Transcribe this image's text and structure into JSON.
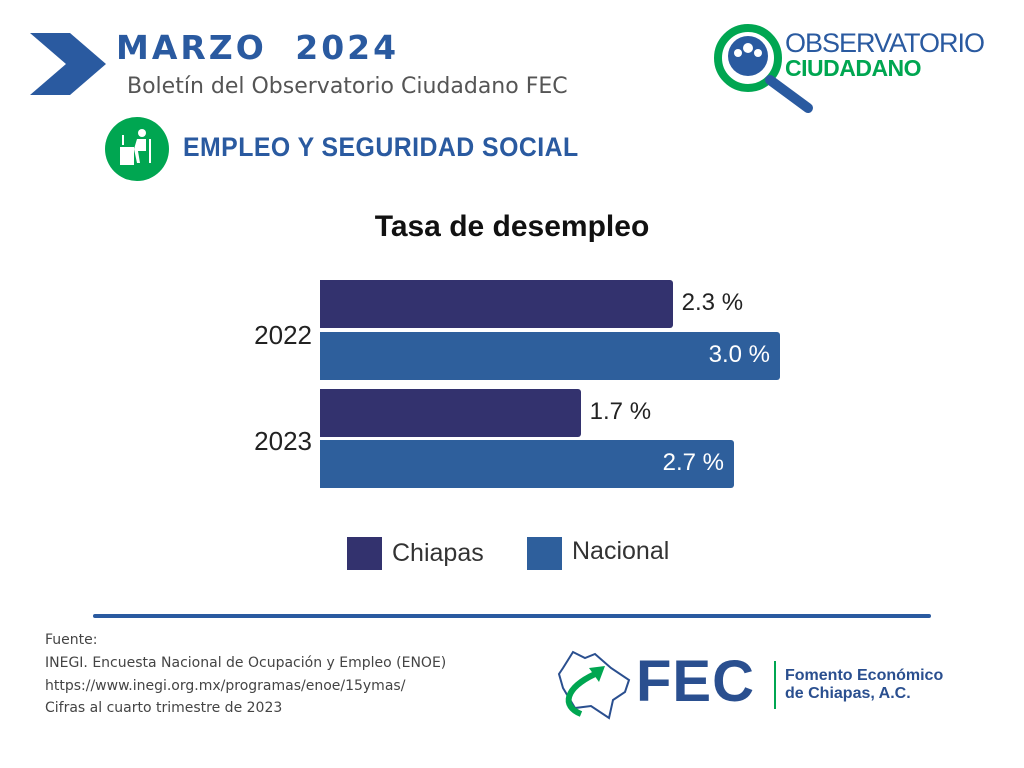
{
  "header": {
    "title": "MARZO 2024",
    "subtitle": "Boletín del Observatorio Ciudadano FEC",
    "section": "EMPLEO Y SEGURIDAD SOCIAL"
  },
  "logo": {
    "line1": "OBSERVATORIO",
    "line2": "CIUDADANO"
  },
  "chart_data": {
    "type": "bar",
    "orientation": "horizontal",
    "title": "Tasa de desempleo",
    "categories": [
      "2022",
      "2023"
    ],
    "series": [
      {
        "name": "Chiapas",
        "color": "#33326e",
        "values": [
          2.3,
          1.7
        ],
        "labels": [
          "2.3 %",
          "1.7 %"
        ]
      },
      {
        "name": "Nacional",
        "color": "#2e5f9c",
        "values": [
          3.0,
          2.7
        ],
        "labels": [
          "3.0 %",
          "2.7 %"
        ]
      }
    ],
    "xlim": [
      0,
      3.0
    ],
    "legend": "bottom",
    "grid": false
  },
  "footer": {
    "source_label": "Fuente:",
    "source_lines": [
      "INEGI. Encuesta Nacional de Ocupación y Empleo (ENOE)",
      "https://www.inegi.org.mx/programas/enoe/15ymas/",
      "Cifras al cuarto trimestre de 2023"
    ],
    "fec": "FEC",
    "fec_name1": "Fomento Económico",
    "fec_name2": "de Chiapas, A.C."
  }
}
